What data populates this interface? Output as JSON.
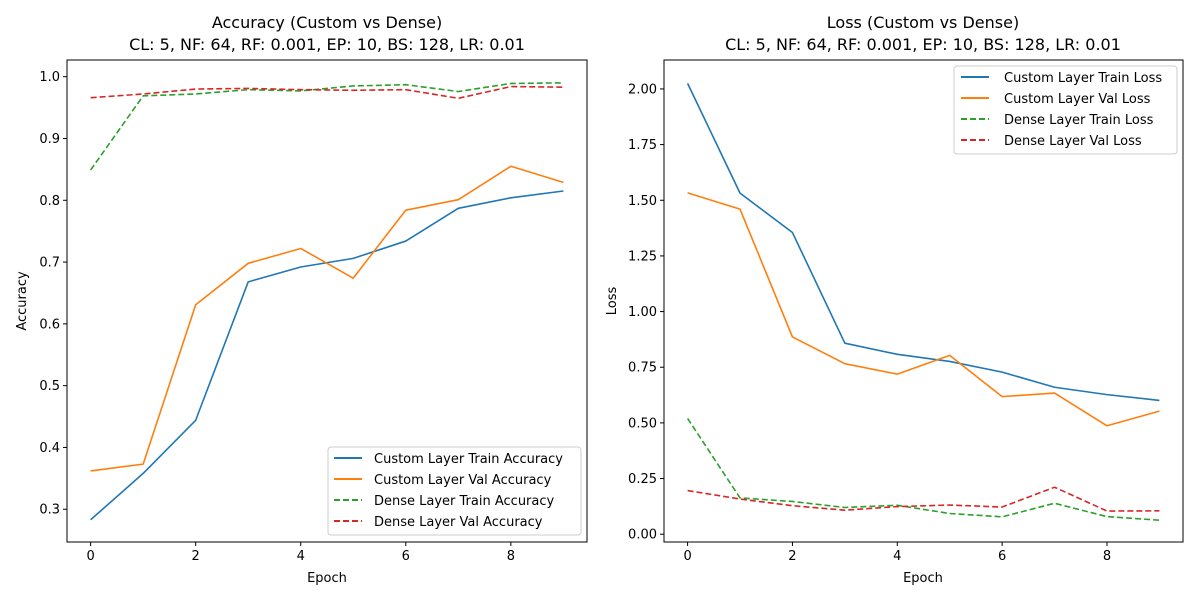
{
  "chart_data": [
    {
      "type": "line",
      "title": "Accuracy (Custom vs Dense)",
      "subtitle": "CL: 5, NF: 64, RF: 0.001, EP: 10, BS: 128, LR: 0.01",
      "xlabel": "Epoch",
      "ylabel": "Accuracy",
      "xlim": [
        -0.45,
        9.45
      ],
      "ylim": [
        0.247,
        1.027
      ],
      "xticks": [
        0,
        2,
        4,
        6,
        8
      ],
      "xtick_labels": [
        "0",
        "2",
        "4",
        "6",
        "8"
      ],
      "yticks": [
        0.3,
        0.4,
        0.5,
        0.6,
        0.7,
        0.8,
        0.9,
        1.0
      ],
      "ytick_labels": [
        "0.3",
        "0.4",
        "0.5",
        "0.6",
        "0.7",
        "0.8",
        "0.9",
        "1.0"
      ],
      "grid": false,
      "legend_position": "lower-right",
      "x": [
        0,
        1,
        2,
        3,
        4,
        5,
        6,
        7,
        8,
        9
      ],
      "series": [
        {
          "name": "Custom Layer Train Accuracy",
          "color": "#1f77b4",
          "dash": "solid",
          "values": [
            0.283,
            0.358,
            0.444,
            0.668,
            0.692,
            0.706,
            0.734,
            0.787,
            0.804,
            0.815
          ]
        },
        {
          "name": "Custom Layer Val Accuracy",
          "color": "#ff7f0e",
          "dash": "solid",
          "values": [
            0.362,
            0.373,
            0.631,
            0.698,
            0.722,
            0.674,
            0.784,
            0.801,
            0.855,
            0.829
          ]
        },
        {
          "name": "Dense Layer Train Accuracy",
          "color": "#2ca02c",
          "dash": "dashed",
          "values": [
            0.849,
            0.969,
            0.972,
            0.979,
            0.977,
            0.985,
            0.987,
            0.976,
            0.989,
            0.99
          ]
        },
        {
          "name": "Dense Layer Val Accuracy",
          "color": "#d62728",
          "dash": "dashed",
          "values": [
            0.966,
            0.972,
            0.98,
            0.981,
            0.979,
            0.978,
            0.979,
            0.965,
            0.984,
            0.983
          ]
        }
      ]
    },
    {
      "type": "line",
      "title": "Loss (Custom vs Dense)",
      "subtitle": "CL: 5, NF: 64, RF: 0.001, EP: 10, BS: 128, LR: 0.01",
      "xlabel": "Epoch",
      "ylabel": "Loss",
      "xlim": [
        -0.45,
        9.45
      ],
      "ylim": [
        -0.035,
        2.13
      ],
      "xticks": [
        0,
        2,
        4,
        6,
        8
      ],
      "xtick_labels": [
        "0",
        "2",
        "4",
        "6",
        "8"
      ],
      "yticks": [
        0.0,
        0.25,
        0.5,
        0.75,
        1.0,
        1.25,
        1.5,
        1.75,
        2.0
      ],
      "ytick_labels": [
        "0.00",
        "0.25",
        "0.50",
        "0.75",
        "1.00",
        "1.25",
        "1.50",
        "1.75",
        "2.00"
      ],
      "grid": false,
      "legend_position": "upper-right",
      "x": [
        0,
        1,
        2,
        3,
        4,
        5,
        6,
        7,
        8,
        9
      ],
      "series": [
        {
          "name": "Custom Layer Train Loss",
          "color": "#1f77b4",
          "dash": "solid",
          "values": [
            2.025,
            1.532,
            1.355,
            0.858,
            0.808,
            0.776,
            0.728,
            0.66,
            0.627,
            0.601
          ]
        },
        {
          "name": "Custom Layer Val Loss",
          "color": "#ff7f0e",
          "dash": "solid",
          "values": [
            1.533,
            1.46,
            0.886,
            0.766,
            0.719,
            0.803,
            0.618,
            0.634,
            0.487,
            0.553
          ]
        },
        {
          "name": "Dense Layer Train Loss",
          "color": "#2ca02c",
          "dash": "dashed",
          "values": [
            0.52,
            0.163,
            0.147,
            0.12,
            0.13,
            0.093,
            0.078,
            0.139,
            0.079,
            0.063
          ]
        },
        {
          "name": "Dense Layer Val Loss",
          "color": "#d62728",
          "dash": "dashed",
          "values": [
            0.196,
            0.158,
            0.128,
            0.108,
            0.124,
            0.131,
            0.122,
            0.211,
            0.104,
            0.105
          ]
        }
      ]
    }
  ]
}
